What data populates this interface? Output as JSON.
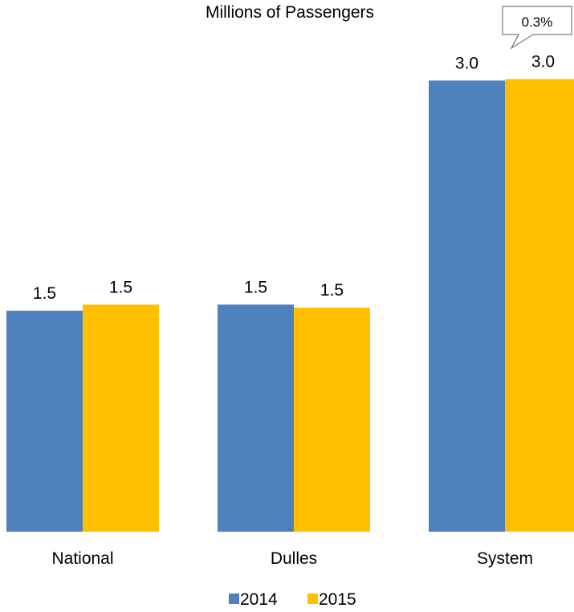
{
  "chart_data": {
    "type": "bar",
    "title": "Millions of Passengers",
    "categories": [
      "National",
      "Dulles",
      "System"
    ],
    "series": [
      {
        "name": "2014",
        "color": "#4f81bd",
        "values": [
          1.46,
          1.5,
          2.98
        ]
      },
      {
        "name": "2015",
        "color": "#ffc000",
        "values": [
          1.5,
          1.48,
          2.99
        ]
      }
    ],
    "data_labels": [
      [
        "1.5",
        "1.5",
        "3.0"
      ],
      [
        "1.5",
        "1.5",
        "3.0"
      ]
    ],
    "callout": "0.3%",
    "ylim": [
      0,
      3.3
    ],
    "grid": false,
    "legend": "bottom"
  }
}
